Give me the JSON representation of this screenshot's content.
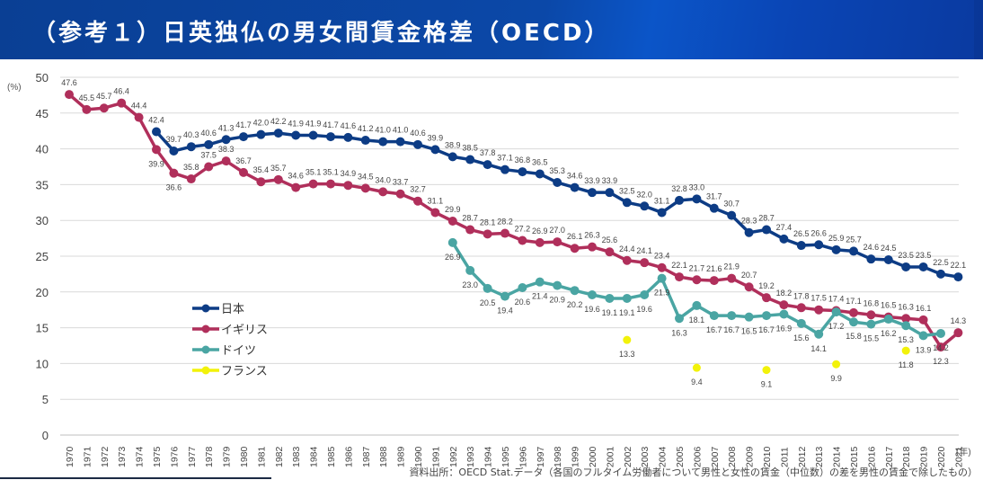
{
  "header": {
    "title": "（参考１）日英独仏の男女間賃金格差（OECD）"
  },
  "source_note": "資料出所：OECD Stat.データ（各国のフルタイム労働者について男性と女性の賃金（中位数）の差を男性の賃金で除したもの）",
  "chart_data": {
    "type": "line",
    "title": "（参考１）日英独仏の男女間賃金格差（OECD）",
    "xlabel": "(年)",
    "ylabel": "(%)",
    "ylim": [
      0,
      50
    ],
    "yticks": [
      0,
      5,
      10,
      15,
      20,
      25,
      30,
      35,
      40,
      45,
      50
    ],
    "grid": true,
    "legend_position": "middle-left",
    "x": [
      1970,
      1971,
      1972,
      1973,
      1974,
      1975,
      1976,
      1977,
      1978,
      1979,
      1980,
      1981,
      1982,
      1983,
      1984,
      1985,
      1986,
      1987,
      1988,
      1989,
      1990,
      1991,
      1992,
      1993,
      1994,
      1995,
      1996,
      1997,
      1998,
      1999,
      2000,
      2001,
      2002,
      2003,
      2004,
      2005,
      2006,
      2007,
      2008,
      2009,
      2010,
      2011,
      2012,
      2013,
      2014,
      2015,
      2016,
      2017,
      2018,
      2019,
      2020,
      2021
    ],
    "series": [
      {
        "name": "日本",
        "color": "#0d3c85",
        "values": [
          null,
          null,
          null,
          null,
          null,
          42.4,
          39.7,
          40.3,
          40.6,
          41.3,
          41.7,
          42.0,
          42.2,
          41.9,
          41.9,
          41.7,
          41.6,
          41.2,
          41.0,
          41.0,
          40.6,
          39.9,
          38.9,
          38.5,
          37.8,
          37.1,
          36.8,
          36.5,
          35.3,
          34.6,
          33.9,
          33.9,
          32.5,
          32.0,
          31.1,
          32.8,
          33.0,
          31.7,
          30.7,
          28.3,
          28.7,
          27.4,
          26.5,
          26.6,
          25.9,
          25.7,
          24.6,
          24.5,
          23.5,
          23.5,
          22.5,
          22.1
        ]
      },
      {
        "name": "イギリス",
        "color": "#b02f5b",
        "values": [
          47.6,
          45.5,
          45.7,
          46.4,
          44.4,
          39.9,
          36.6,
          35.8,
          37.5,
          38.3,
          36.7,
          35.4,
          35.7,
          34.6,
          35.1,
          35.1,
          34.9,
          34.5,
          34.0,
          33.7,
          32.7,
          31.1,
          29.9,
          28.7,
          28.1,
          28.2,
          27.2,
          26.9,
          27.0,
          26.1,
          26.3,
          25.6,
          24.4,
          24.1,
          23.4,
          22.1,
          21.7,
          21.6,
          21.9,
          20.7,
          19.2,
          18.2,
          17.8,
          17.5,
          17.4,
          17.1,
          16.8,
          16.5,
          16.3,
          16.1,
          12.3,
          14.3
        ]
      },
      {
        "name": "ドイツ",
        "color": "#4aa5a3",
        "values": [
          null,
          null,
          null,
          null,
          null,
          null,
          null,
          null,
          null,
          null,
          null,
          null,
          null,
          null,
          null,
          null,
          null,
          null,
          null,
          null,
          null,
          null,
          26.9,
          23.0,
          20.5,
          19.4,
          20.6,
          21.4,
          20.9,
          20.2,
          19.6,
          19.1,
          19.1,
          19.6,
          21.9,
          16.3,
          18.1,
          16.7,
          16.7,
          16.5,
          16.7,
          16.9,
          15.6,
          14.1,
          17.2,
          15.8,
          15.5,
          16.2,
          15.3,
          13.9,
          14.2,
          null
        ]
      },
      {
        "name": "フランス",
        "color": "#f2f20a",
        "values": [
          null,
          null,
          null,
          null,
          null,
          null,
          null,
          null,
          null,
          null,
          null,
          null,
          null,
          null,
          null,
          null,
          null,
          null,
          null,
          null,
          null,
          null,
          null,
          null,
          null,
          null,
          null,
          null,
          null,
          null,
          null,
          null,
          13.3,
          null,
          null,
          null,
          9.4,
          null,
          null,
          null,
          9.1,
          null,
          null,
          null,
          9.9,
          null,
          null,
          null,
          11.8,
          null,
          null,
          null
        ]
      }
    ]
  }
}
